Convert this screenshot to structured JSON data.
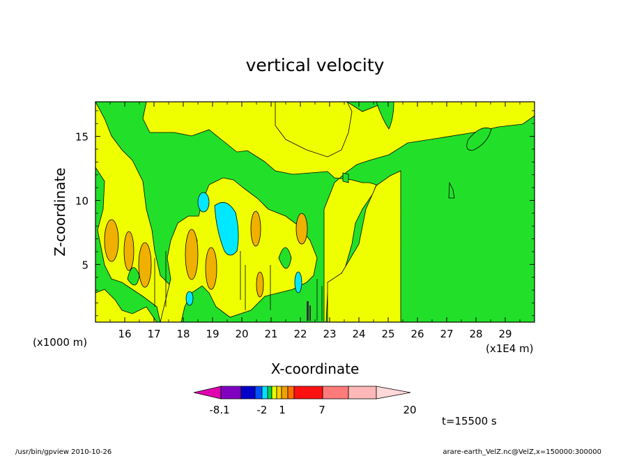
{
  "chart_data": {
    "type": "contour",
    "title": "vertical velocity",
    "xlabel": "X-coordinate",
    "ylabel": "Z-coordinate",
    "x_unit_left": "(x1000 m)",
    "x_unit_right": "(x1E4 m)",
    "x_ticks": [
      16,
      17,
      18,
      19,
      20,
      21,
      22,
      23,
      24,
      25,
      26,
      27,
      28,
      29
    ],
    "y_ticks": [
      5,
      10,
      15
    ],
    "xlim": [
      15.0,
      30.0
    ],
    "ylim": [
      0.5,
      17.7
    ],
    "time_label": "t=15500 s",
    "colorbar": {
      "labels": [
        "-8.1",
        "-2",
        "1",
        "7",
        "20"
      ],
      "colors": [
        "#e000b0",
        "#8000c0",
        "#0000c8",
        "#0050ff",
        "#00e0ff",
        "#00d050",
        "#e8ff00",
        "#ffd000",
        "#f0a000",
        "#ff7000",
        "#ff1010",
        "#ff7a7a",
        "#ffb8b8",
        "#ffd8d8"
      ]
    },
    "palette": {
      "green": "#22e02a",
      "yellow": "#f0ff00",
      "orange": "#f0b000",
      "cyan": "#00e8ff",
      "dark": "#303030"
    },
    "footer_left": "/usr/bin/gpview  2010-10-26",
    "footer_right": "arare-earth_VelZ.nc@VelZ,x=150000:300000"
  }
}
